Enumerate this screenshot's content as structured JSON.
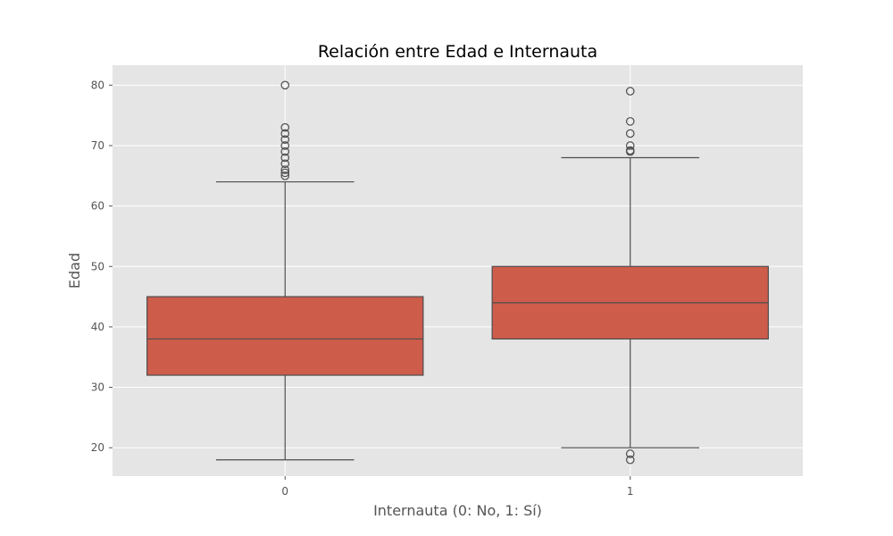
{
  "chart_data": {
    "type": "box",
    "title": "Relación entre Edad e Internauta",
    "xlabel": "Internauta (0: No, 1: Sí)",
    "ylabel": "Edad",
    "categories": [
      "0",
      "1"
    ],
    "ylim": [
      15.3,
      83.3
    ],
    "yticks": [
      20,
      30,
      40,
      50,
      60,
      70,
      80
    ],
    "grid": true,
    "style": "ggplot",
    "box_color": "#cd5c4a",
    "background_color": "#e5e5e5",
    "boxes": [
      {
        "category": "0",
        "whisker_low": 18,
        "q1": 32,
        "median": 38,
        "q3": 45,
        "whisker_high": 64,
        "outliers": [
          65,
          65.5,
          66,
          67,
          68,
          69,
          70,
          71,
          72,
          73,
          80
        ]
      },
      {
        "category": "1",
        "whisker_low": 20,
        "q1": 38,
        "median": 44,
        "q3": 50,
        "whisker_high": 68,
        "outliers": [
          18,
          19,
          69,
          69.2,
          70,
          72,
          74,
          79
        ]
      }
    ]
  }
}
